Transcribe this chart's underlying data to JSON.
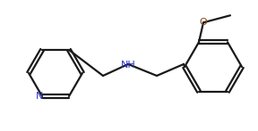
{
  "background_color": "#ffffff",
  "line_color": "#1a1a1a",
  "n_color": "#3333cc",
  "o_color": "#8b4513",
  "line_width": 1.6,
  "figsize": [
    2.88,
    1.47
  ],
  "dpi": 100,
  "xlim": [
    0,
    288
  ],
  "ylim": [
    0,
    147
  ]
}
